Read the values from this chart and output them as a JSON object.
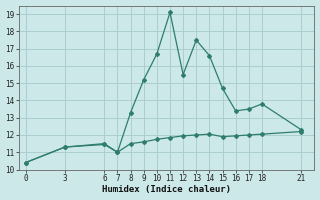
{
  "xlabel": "Humidex (Indice chaleur)",
  "bg_color": "#cce8e8",
  "line_color": "#2e7d6e",
  "grid_color": "#aacfcf",
  "x_main": [
    0,
    3,
    6,
    7,
    8,
    9,
    10,
    11,
    12,
    13,
    14,
    15,
    16,
    17,
    18,
    21
  ],
  "y_main": [
    10.4,
    11.3,
    11.5,
    11.0,
    13.3,
    15.2,
    16.7,
    19.1,
    15.5,
    17.5,
    16.6,
    14.7,
    13.4,
    13.5,
    13.8,
    12.3
  ],
  "x_flat": [
    0,
    3,
    6,
    7,
    8,
    9,
    10,
    11,
    12,
    13,
    14,
    15,
    16,
    17,
    18,
    21
  ],
  "y_flat": [
    10.4,
    11.3,
    11.45,
    11.0,
    11.5,
    11.6,
    11.75,
    11.85,
    11.95,
    12.0,
    12.05,
    11.9,
    11.95,
    12.0,
    12.05,
    12.2
  ],
  "xlim": [
    -0.5,
    22
  ],
  "ylim": [
    10,
    19.5
  ],
  "xticks": [
    0,
    3,
    6,
    7,
    8,
    9,
    10,
    11,
    12,
    13,
    14,
    15,
    16,
    17,
    18,
    21
  ],
  "yticks": [
    10,
    11,
    12,
    13,
    14,
    15,
    16,
    17,
    18,
    19
  ]
}
